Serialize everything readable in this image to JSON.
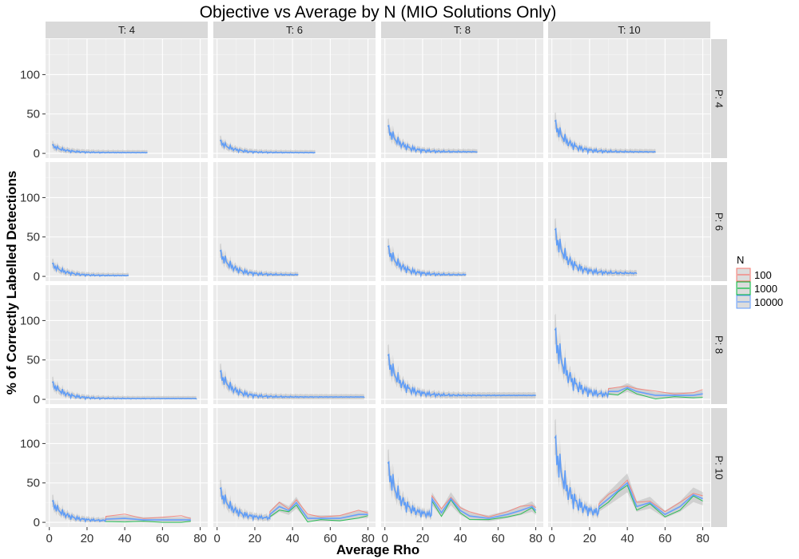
{
  "chart_data": {
    "type": "line",
    "title": "Objective vs Average by N (MIO Solutions Only)",
    "xlabel": "Average Rho",
    "ylabel": "% of Correctly Labelled Detections",
    "xlim": [
      -2,
      84
    ],
    "ylim": [
      -6,
      145
    ],
    "x_ticks": [
      0,
      20,
      40,
      60,
      80
    ],
    "y_ticks": [
      0,
      50,
      100
    ],
    "grid": true,
    "legend": {
      "title": "N",
      "position": "right",
      "entries": [
        {
          "label": "100",
          "color": "#F8766D"
        },
        {
          "label": "1000",
          "color": "#00BA38"
        },
        {
          "label": "10000",
          "color": "#619CFF"
        }
      ]
    },
    "facet_cols": [
      "T: 4",
      "T: 6",
      "T: 8",
      "T: 10"
    ],
    "facet_rows": [
      "P: 4",
      "P: 6",
      "P: 8",
      "P: 10"
    ],
    "panels": [
      {
        "row": 0,
        "col": 0,
        "x_end": 52,
        "peak": 10,
        "floor": 1,
        "tail": []
      },
      {
        "row": 0,
        "col": 1,
        "x_end": 52,
        "peak": 15,
        "floor": 1,
        "tail": []
      },
      {
        "row": 0,
        "col": 2,
        "x_end": 49,
        "peak": 32,
        "floor": 2,
        "tail": []
      },
      {
        "row": 0,
        "col": 3,
        "x_end": 55,
        "peak": 38,
        "floor": 2,
        "tail": []
      },
      {
        "row": 1,
        "col": 0,
        "x_end": 42,
        "peak": 15,
        "floor": 1,
        "tail": []
      },
      {
        "row": 1,
        "col": 1,
        "x_end": 43,
        "peak": 30,
        "floor": 2,
        "tail": []
      },
      {
        "row": 1,
        "col": 2,
        "x_end": 43,
        "peak": 35,
        "floor": 2,
        "tail": []
      },
      {
        "row": 1,
        "col": 3,
        "x_end": 45,
        "peak": 55,
        "floor": 4,
        "tail": []
      },
      {
        "row": 2,
        "col": 0,
        "x_end": 78,
        "peak": 20,
        "floor": 1,
        "tail": []
      },
      {
        "row": 2,
        "col": 1,
        "x_end": 78,
        "peak": 33,
        "floor": 3,
        "tail": []
      },
      {
        "row": 2,
        "col": 2,
        "x_end": 80,
        "peak": 52,
        "floor": 5,
        "tail": []
      },
      {
        "row": 2,
        "col": 3,
        "x_end": 80,
        "peak": 82,
        "floor": 5,
        "tail": [
          [
            30,
            10
          ],
          [
            35,
            10
          ],
          [
            40,
            15
          ],
          [
            45,
            10
          ],
          [
            55,
            5
          ],
          [
            65,
            5
          ],
          [
            75,
            5
          ],
          [
            80,
            7
          ]
        ]
      },
      {
        "row": 3,
        "col": 0,
        "x_end": 75,
        "peak": 25,
        "floor": 2,
        "tail": [
          [
            30,
            4
          ],
          [
            40,
            5
          ],
          [
            50,
            3
          ],
          [
            60,
            3
          ],
          [
            70,
            3
          ],
          [
            75,
            3
          ]
        ]
      },
      {
        "row": 3,
        "col": 1,
        "x_end": 80,
        "peak": 40,
        "floor": 5,
        "tail": [
          [
            28,
            10
          ],
          [
            33,
            20
          ],
          [
            38,
            15
          ],
          [
            42,
            25
          ],
          [
            48,
            5
          ],
          [
            55,
            5
          ],
          [
            65,
            5
          ],
          [
            75,
            10
          ],
          [
            80,
            10
          ]
        ]
      },
      {
        "row": 3,
        "col": 2,
        "x_end": 80,
        "peak": 70,
        "floor": 8,
        "tail": [
          [
            25,
            30
          ],
          [
            30,
            12
          ],
          [
            35,
            30
          ],
          [
            40,
            15
          ],
          [
            45,
            8
          ],
          [
            55,
            5
          ],
          [
            65,
            10
          ],
          [
            72,
            15
          ],
          [
            78,
            20
          ],
          [
            80,
            15
          ]
        ]
      },
      {
        "row": 3,
        "col": 3,
        "x_end": 80,
        "peak": 100,
        "floor": 10,
        "tail": [
          [
            25,
            20
          ],
          [
            30,
            30
          ],
          [
            35,
            40
          ],
          [
            40,
            50
          ],
          [
            45,
            20
          ],
          [
            52,
            25
          ],
          [
            60,
            10
          ],
          [
            68,
            20
          ],
          [
            75,
            35
          ],
          [
            80,
            30
          ]
        ]
      }
    ]
  }
}
